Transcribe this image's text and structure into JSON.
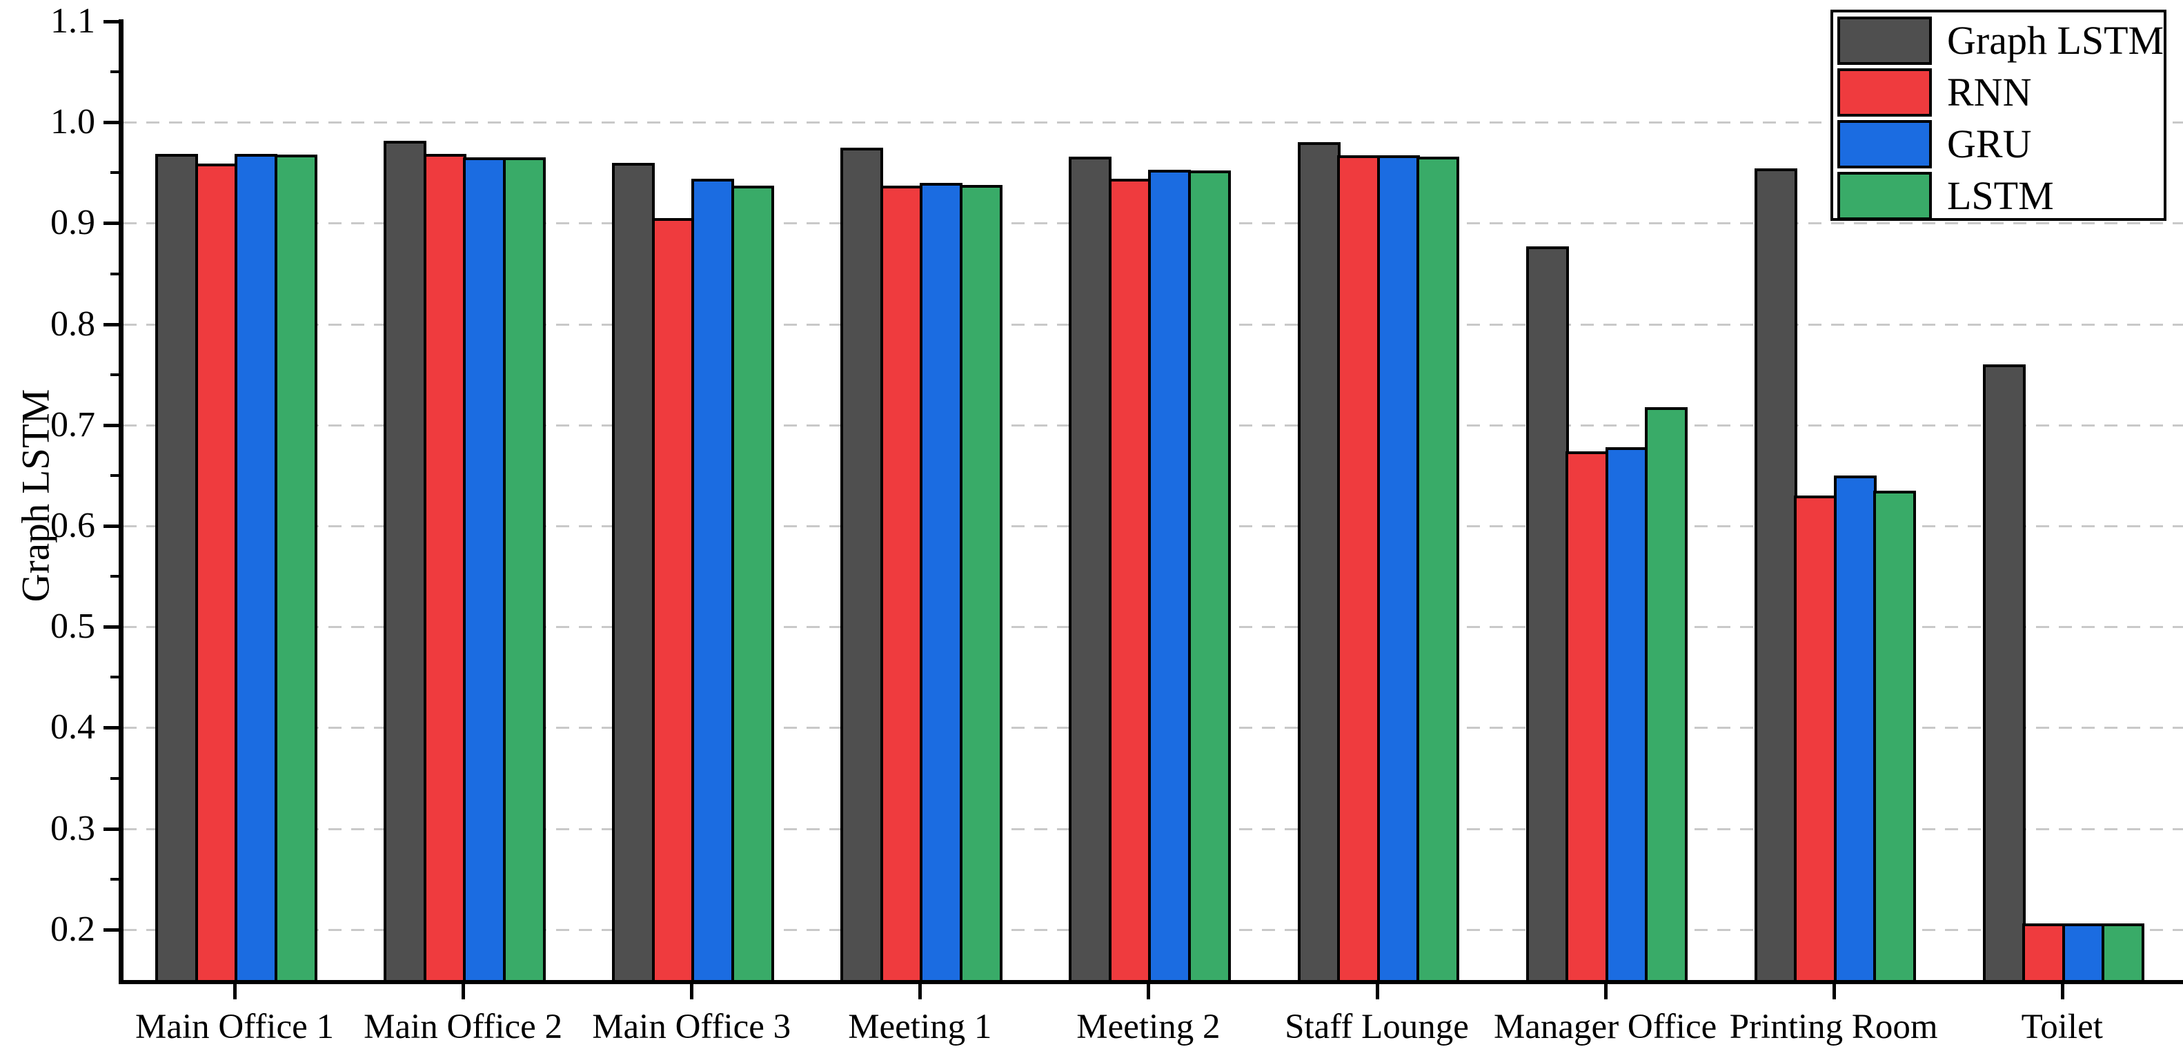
{
  "figure": {
    "background_color": "#ffffff",
    "axis_color": "#000000",
    "grid_color": "#c9c9c9",
    "bar_edge_color": "#000000"
  },
  "chart_data": {
    "type": "bar",
    "title": "",
    "xlabel": "",
    "ylabel": "Graph LSTM",
    "categories": [
      "Main Office 1",
      "Main Office 2",
      "Main Office 3",
      "Meeting 1",
      "Meeting 2",
      "Staff Lounge",
      "Manager Office",
      "Printing Room",
      "Toilet"
    ],
    "series": [
      {
        "name": "Graph LSTM",
        "color": "#4f4f4f",
        "values": [
          0.969,
          0.982,
          0.96,
          0.975,
          0.966,
          0.98,
          0.877,
          0.954,
          0.76
        ]
      },
      {
        "name": "RNN",
        "color": "#ef3b3e",
        "values": [
          0.959,
          0.969,
          0.905,
          0.937,
          0.944,
          0.967,
          0.674,
          0.63,
          0.206
        ]
      },
      {
        "name": "GRU",
        "color": "#1b6ce1",
        "values": [
          0.969,
          0.965,
          0.944,
          0.94,
          0.953,
          0.967,
          0.678,
          0.65,
          0.206
        ]
      },
      {
        "name": "LSTM",
        "color": "#39ab68",
        "values": [
          0.968,
          0.965,
          0.937,
          0.938,
          0.952,
          0.966,
          0.718,
          0.635,
          0.206
        ]
      }
    ],
    "ylim": [
      0.15,
      1.1
    ],
    "yticks": [
      0.2,
      0.3,
      0.4,
      0.5,
      0.6,
      0.7,
      0.8,
      0.9,
      1.0,
      1.1
    ],
    "minor_yticks": [
      0.25,
      0.35,
      0.45,
      0.55,
      0.65,
      0.75,
      0.85,
      0.95,
      1.05
    ],
    "grid": "horizontal dashed at major ticks 0.2-1.0",
    "legend_position": "upper right"
  }
}
